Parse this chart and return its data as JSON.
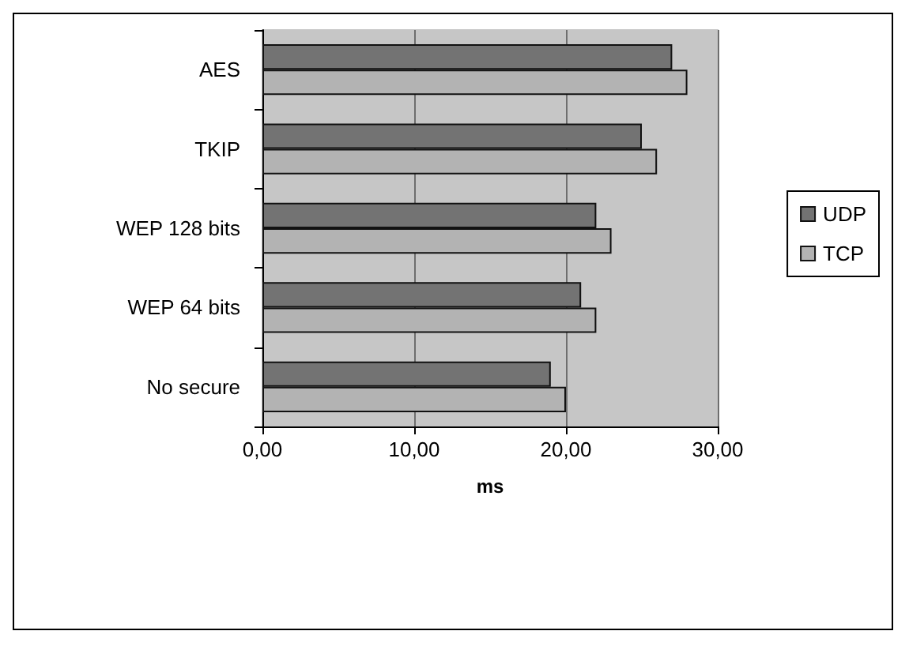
{
  "chart_data": {
    "type": "bar",
    "orientation": "horizontal",
    "xlabel": "ms",
    "categories": [
      "AES",
      "TKIP",
      "WEP 128 bits",
      "WEP 64 bits",
      "No secure"
    ],
    "series": [
      {
        "name": "UDP",
        "color": "#737373",
        "values": [
          27,
          25,
          22,
          21,
          19
        ]
      },
      {
        "name": "TCP",
        "color": "#b3b3b3",
        "values": [
          28,
          26,
          23,
          22,
          20
        ]
      }
    ],
    "xlim": [
      0,
      30
    ],
    "xticks": [
      {
        "value": 0,
        "label": "0,00"
      },
      {
        "value": 10,
        "label": "10,00"
      },
      {
        "value": 20,
        "label": "20,00"
      },
      {
        "value": 30,
        "label": "30,00"
      }
    ],
    "grid": "x",
    "legend": "right"
  }
}
